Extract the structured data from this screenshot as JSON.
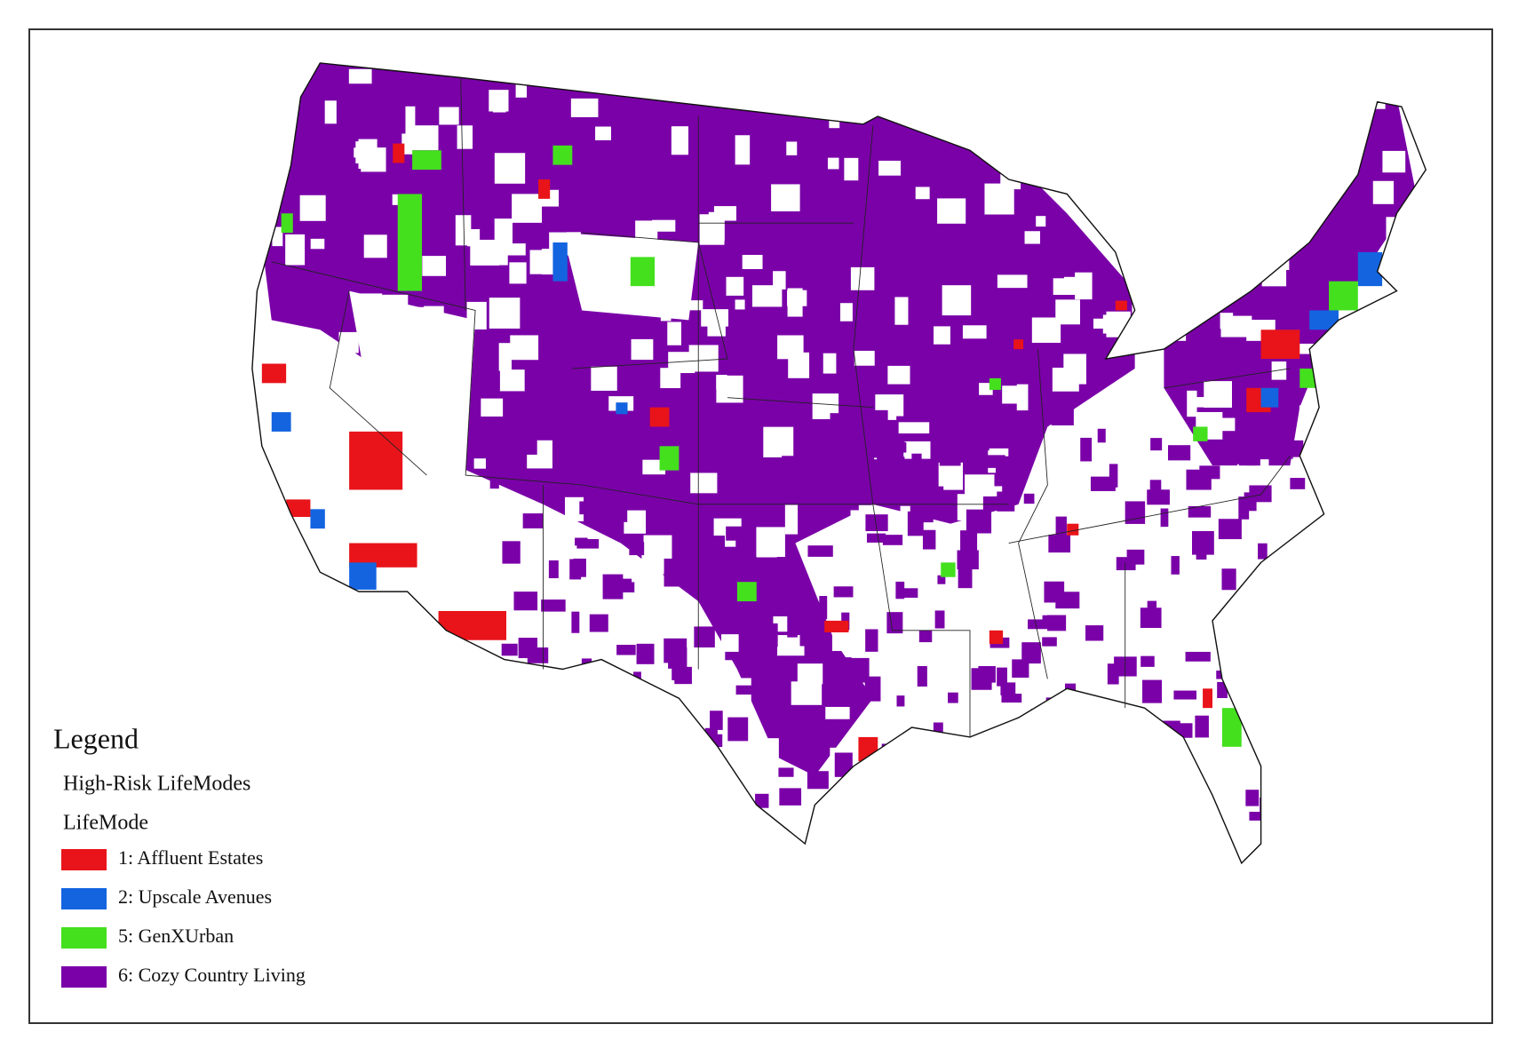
{
  "legend": {
    "title": "Legend",
    "heading": "High-Risk LifeModes",
    "field": "LifeMode",
    "items": [
      {
        "label": "1: Affluent Estates",
        "color": "#e8141a"
      },
      {
        "label": "2: Upscale Avenues",
        "color": "#1464e0"
      },
      {
        "label": "5: GenXUrban",
        "color": "#44e01e"
      },
      {
        "label": "6: Cozy Country Living",
        "color": "#7a00a8"
      }
    ]
  }
}
